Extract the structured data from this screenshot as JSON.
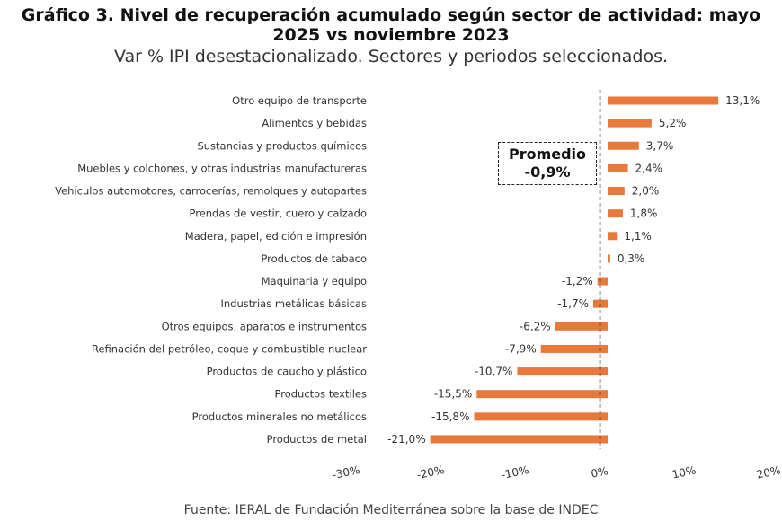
{
  "chart_data": {
    "type": "bar",
    "orientation": "horizontal",
    "title": "Gráfico 3. Nivel de recuperación acumulado según sector de actividad: mayo 2025 vs noviembre 2023",
    "subtitle": "Var % IPI desestacionalizado. Sectores y periodos seleccionados.",
    "categories": [
      "Otro equipo de transporte",
      "Alimentos y bebidas",
      "Sustancias y productos químicos",
      "Muebles y colchones, y otras industrias manufactureras",
      "Vehículos automotores, carrocerías, remolques y autopartes",
      "Prendas de vestir, cuero y calzado",
      "Madera, papel, edición e impresión",
      "Productos de tabaco",
      "Maquinaria y equipo",
      "Industrias metálicas básicas",
      "Otros equipos, aparatos e instrumentos",
      "Refinación del petróleo, coque y combustible nuclear",
      "Productos de caucho y plástico",
      "Productos textiles",
      "Productos minerales no metálicos",
      "Productos de metal"
    ],
    "values": [
      13.1,
      5.2,
      3.7,
      2.4,
      2.0,
      1.8,
      1.1,
      0.3,
      -1.2,
      -1.7,
      -6.2,
      -7.9,
      -10.7,
      -15.5,
      -15.8,
      -21.0
    ],
    "data_labels": [
      "13,1%",
      "5,2%",
      "3,7%",
      "2,4%",
      "2,0%",
      "1,8%",
      "1,1%",
      "0,3%",
      "-1,2%",
      "-1,7%",
      "-6,2%",
      "-7,9%",
      "-10,7%",
      "-15,5%",
      "-15,8%",
      "-21,0%"
    ],
    "xlim": [
      -30,
      20
    ],
    "x_ticks": [
      "-30%",
      "-20%",
      "-10%",
      "0%",
      "10%",
      "20%"
    ],
    "x_tick_values": [
      -30,
      -20,
      -10,
      0,
      10,
      20
    ],
    "average": {
      "value": -0.9,
      "label": "Promedio",
      "value_label": "-0,9%"
    },
    "grid": false,
    "bar_color": "#E8793A"
  },
  "source": "Fuente: IERAL de Fundación Mediterránea sobre la base de INDEC"
}
